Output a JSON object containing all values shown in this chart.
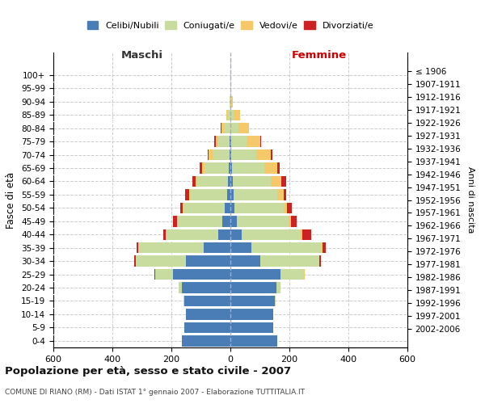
{
  "age_groups": [
    "0-4",
    "5-9",
    "10-14",
    "15-19",
    "20-24",
    "25-29",
    "30-34",
    "35-39",
    "40-44",
    "45-49",
    "50-54",
    "55-59",
    "60-64",
    "65-69",
    "70-74",
    "75-79",
    "80-84",
    "85-89",
    "90-94",
    "95-99",
    "100+"
  ],
  "birth_years": [
    "2002-2006",
    "1997-2001",
    "1992-1996",
    "1987-1991",
    "1982-1986",
    "1977-1981",
    "1972-1976",
    "1967-1971",
    "1962-1966",
    "1957-1961",
    "1952-1956",
    "1947-1951",
    "1942-1946",
    "1937-1941",
    "1932-1936",
    "1927-1931",
    "1922-1926",
    "1917-1921",
    "1912-1916",
    "1907-1911",
    "≤ 1906"
  ],
  "males_celibi": [
    165,
    155,
    150,
    155,
    165,
    195,
    150,
    90,
    42,
    28,
    18,
    10,
    8,
    5,
    3,
    2,
    1,
    1,
    0,
    0,
    0
  ],
  "males_coniugati": [
    0,
    0,
    1,
    3,
    10,
    60,
    170,
    220,
    175,
    150,
    140,
    125,
    105,
    82,
    58,
    38,
    22,
    8,
    3,
    1,
    0
  ],
  "males_vedovi": [
    0,
    0,
    0,
    0,
    0,
    0,
    0,
    1,
    1,
    2,
    3,
    4,
    6,
    8,
    12,
    10,
    8,
    5,
    1,
    0,
    0
  ],
  "males_divorziati": [
    0,
    0,
    0,
    0,
    1,
    2,
    5,
    8,
    10,
    15,
    10,
    15,
    10,
    8,
    5,
    4,
    2,
    0,
    0,
    0,
    0
  ],
  "females_nubili": [
    160,
    145,
    145,
    150,
    155,
    170,
    100,
    70,
    38,
    22,
    15,
    10,
    8,
    5,
    3,
    2,
    0,
    0,
    0,
    0,
    0
  ],
  "females_coniugate": [
    0,
    0,
    1,
    4,
    15,
    80,
    200,
    240,
    200,
    175,
    165,
    150,
    130,
    110,
    85,
    55,
    28,
    12,
    3,
    1,
    0
  ],
  "females_vedove": [
    0,
    0,
    0,
    0,
    0,
    1,
    2,
    3,
    5,
    8,
    12,
    20,
    35,
    45,
    50,
    45,
    35,
    20,
    5,
    1,
    0
  ],
  "females_divorziate": [
    0,
    0,
    0,
    0,
    1,
    2,
    5,
    10,
    30,
    20,
    15,
    10,
    15,
    8,
    5,
    2,
    1,
    0,
    0,
    0,
    0
  ],
  "color_celibi": "#4a7db5",
  "color_coniugati": "#c8dca0",
  "color_vedovi": "#f5c96a",
  "color_divorziati": "#cc2222",
  "title": "Popolazione per età, sesso e stato civile - 2007",
  "subtitle": "COMUNE DI RIANO (RM) - Dati ISTAT 1° gennaio 2007 - Elaborazione TUTTITALIA.IT",
  "ylabel_left": "Fasce di età",
  "ylabel_right": "Anni di nascita",
  "xlim": 600,
  "legend_labels": [
    "Celibi/Nubili",
    "Coniugati/e",
    "Vedovi/e",
    "Divorziati/e"
  ],
  "maschi_label": "Maschi",
  "femmine_label": "Femmine"
}
